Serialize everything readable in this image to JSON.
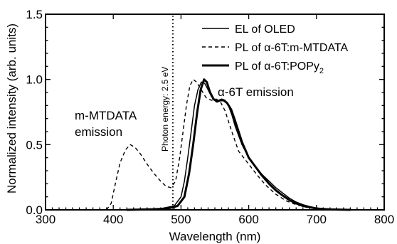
{
  "chart_data": {
    "type": "line",
    "xlabel": "Wavelength (nm)",
    "ylabel": "Normalized intensity (arb. units)",
    "xlim": [
      300,
      800
    ],
    "ylim": [
      0,
      1.5
    ],
    "x_ticks": [
      "300",
      "400",
      "500",
      "600",
      "700",
      "800"
    ],
    "y_ticks": [
      "0.0",
      "0.5",
      "1.0",
      "1.5"
    ],
    "grid": false,
    "legend_position": "top-right",
    "series": [
      {
        "name": "EL of OLED",
        "style": "thin-solid",
        "points": [
          [
            400,
            0
          ],
          [
            440,
            0.003
          ],
          [
            470,
            0.01
          ],
          [
            490,
            0.03
          ],
          [
            500,
            0.1
          ],
          [
            505,
            0.22
          ],
          [
            510,
            0.4
          ],
          [
            515,
            0.6
          ],
          [
            520,
            0.8
          ],
          [
            525,
            0.92
          ],
          [
            530,
            0.98
          ],
          [
            535,
            0.97
          ],
          [
            540,
            0.92
          ],
          [
            545,
            0.87
          ],
          [
            550,
            0.84
          ],
          [
            555,
            0.84
          ],
          [
            560,
            0.85
          ],
          [
            565,
            0.84
          ],
          [
            570,
            0.8
          ],
          [
            575,
            0.73
          ],
          [
            580,
            0.64
          ],
          [
            590,
            0.5
          ],
          [
            600,
            0.4
          ],
          [
            610,
            0.33
          ],
          [
            620,
            0.27
          ],
          [
            630,
            0.22
          ],
          [
            640,
            0.17
          ],
          [
            650,
            0.13
          ],
          [
            660,
            0.09
          ],
          [
            670,
            0.06
          ],
          [
            680,
            0.04
          ],
          [
            690,
            0.025
          ],
          [
            700,
            0.015
          ],
          [
            720,
            0.005
          ],
          [
            750,
            0
          ]
        ]
      },
      {
        "name": "PL of α-6T:m-MTDATA",
        "style": "dashed",
        "points": [
          [
            390,
            0
          ],
          [
            397,
            0.05
          ],
          [
            403,
            0.2
          ],
          [
            410,
            0.36
          ],
          [
            418,
            0.46
          ],
          [
            425,
            0.5
          ],
          [
            432,
            0.48
          ],
          [
            440,
            0.43
          ],
          [
            450,
            0.35
          ],
          [
            460,
            0.28
          ],
          [
            470,
            0.22
          ],
          [
            478,
            0.18
          ],
          [
            485,
            0.17
          ],
          [
            492,
            0.22
          ],
          [
            498,
            0.4
          ],
          [
            503,
            0.6
          ],
          [
            508,
            0.8
          ],
          [
            513,
            0.95
          ],
          [
            518,
            1.0
          ],
          [
            523,
            0.98
          ],
          [
            530,
            0.92
          ],
          [
            537,
            0.86
          ],
          [
            545,
            0.84
          ],
          [
            552,
            0.85
          ],
          [
            558,
            0.83
          ],
          [
            565,
            0.76
          ],
          [
            575,
            0.6
          ],
          [
            585,
            0.45
          ],
          [
            600,
            0.35
          ],
          [
            612,
            0.27
          ],
          [
            625,
            0.19
          ],
          [
            640,
            0.12
          ],
          [
            655,
            0.07
          ],
          [
            670,
            0.04
          ],
          [
            690,
            0.015
          ],
          [
            710,
            0.005
          ],
          [
            730,
            0
          ]
        ]
      },
      {
        "name": "PL of α-6T:POPy",
        "name_subscript": "2",
        "style": "thick-solid",
        "points": [
          [
            420,
            0
          ],
          [
            460,
            0.005
          ],
          [
            480,
            0.01
          ],
          [
            495,
            0.03
          ],
          [
            505,
            0.1
          ],
          [
            512,
            0.28
          ],
          [
            518,
            0.5
          ],
          [
            524,
            0.75
          ],
          [
            529,
            0.92
          ],
          [
            534,
            1.0
          ],
          [
            538,
            0.98
          ],
          [
            543,
            0.9
          ],
          [
            548,
            0.85
          ],
          [
            553,
            0.83
          ],
          [
            558,
            0.84
          ],
          [
            563,
            0.84
          ],
          [
            568,
            0.82
          ],
          [
            574,
            0.77
          ],
          [
            580,
            0.68
          ],
          [
            590,
            0.52
          ],
          [
            600,
            0.4
          ],
          [
            610,
            0.33
          ],
          [
            620,
            0.26
          ],
          [
            630,
            0.2
          ],
          [
            640,
            0.15
          ],
          [
            650,
            0.11
          ],
          [
            660,
            0.075
          ],
          [
            670,
            0.05
          ],
          [
            680,
            0.03
          ],
          [
            690,
            0.02
          ],
          [
            700,
            0.01
          ],
          [
            720,
            0.003
          ],
          [
            750,
            0
          ]
        ]
      }
    ],
    "vline": {
      "x": 488,
      "style": "dotted",
      "label": "Photon energy: 2.5 eV"
    },
    "annotations": [
      {
        "id": "mmtdata",
        "lines": [
          "m-MTDATA",
          "emission"
        ]
      },
      {
        "id": "a6t",
        "lines": [
          "α-6T emission"
        ]
      }
    ]
  }
}
